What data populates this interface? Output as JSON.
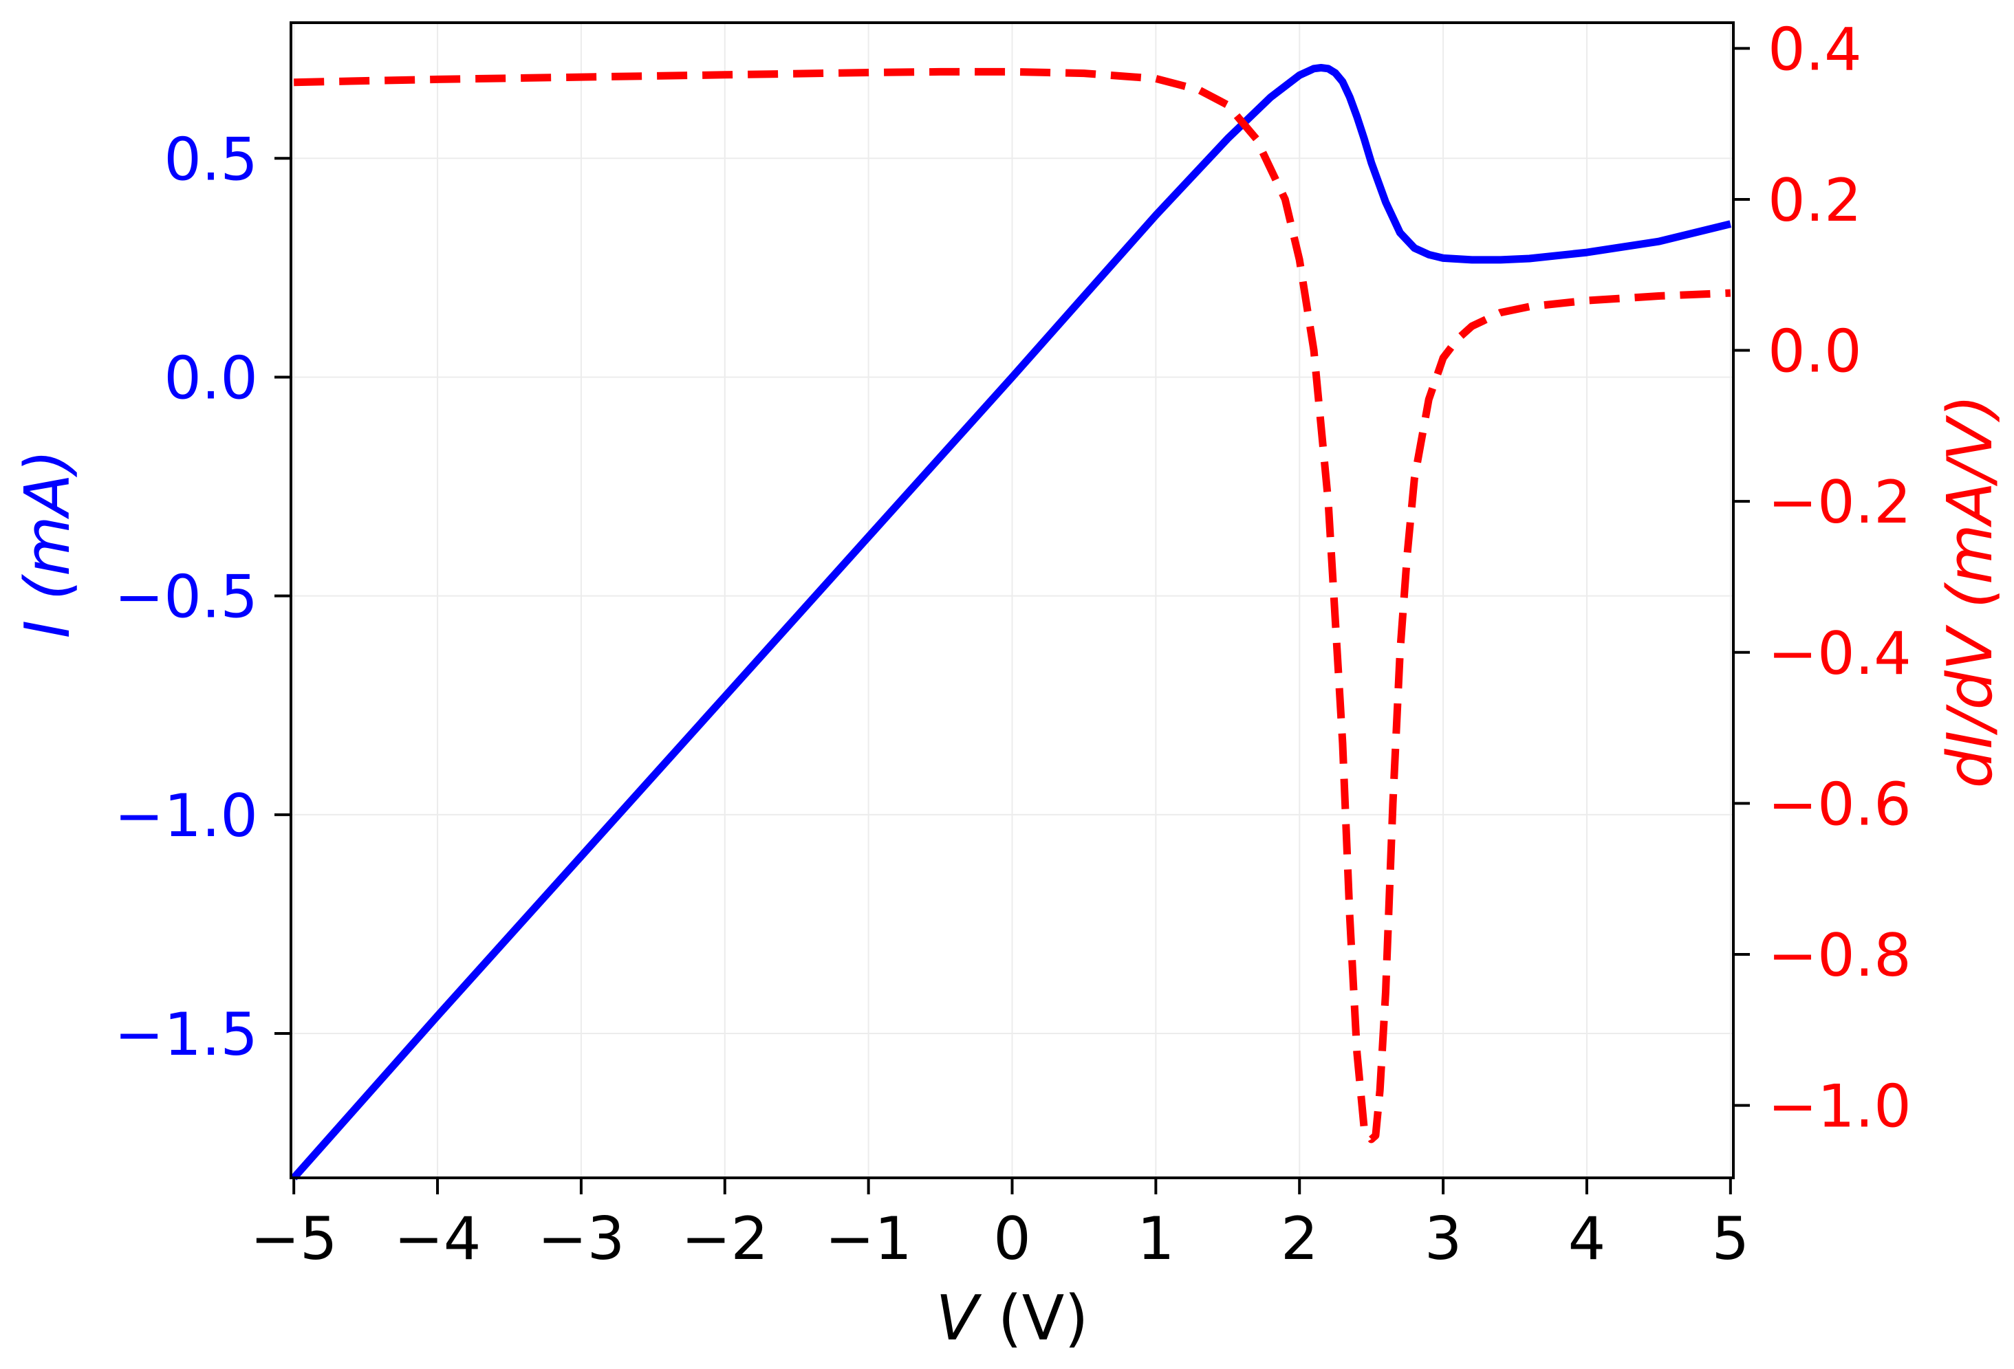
{
  "chart_data": {
    "type": "line",
    "xlabel": {
      "symbol": "V",
      "unit": " (V)"
    },
    "ylabel_left": {
      "symbol": "I",
      "unit": " (mA)"
    },
    "ylabel_right": {
      "symbol": "dI/dV",
      "unit": " (mA/V)"
    },
    "xlim": [
      -5.02,
      5.02
    ],
    "ylim_left": [
      -1.83,
      0.81
    ],
    "ylim_right": [
      -1.096,
      0.434
    ],
    "x_ticks": [
      -5,
      -4,
      -3,
      -2,
      -1,
      0,
      1,
      2,
      3,
      4,
      5
    ],
    "x_tick_labels": [
      "−5",
      "−4",
      "−3",
      "−2",
      "−1",
      "0",
      "1",
      "2",
      "3",
      "4",
      "5"
    ],
    "y_left_ticks": [
      0.5,
      0.0,
      -0.5,
      -1.0,
      -1.5
    ],
    "y_left_tick_labels": [
      "0.5",
      "0.0",
      "−0.5",
      "−1.0",
      "−1.5"
    ],
    "y_right_ticks": [
      0.4,
      0.2,
      0.0,
      -0.2,
      -0.4,
      -0.6,
      -0.8,
      -1.0
    ],
    "y_right_tick_labels": [
      "0.4",
      "0.2",
      "0.0",
      "−0.2",
      "−0.4",
      "−0.6",
      "−0.8",
      "−1.0"
    ],
    "grid": true,
    "series": [
      {
        "axis": "left",
        "style": "solid",
        "color": "#0000ff",
        "x": [
          -5.0,
          -4.0,
          -3.0,
          -2.0,
          -1.0,
          0.0,
          0.5,
          1.0,
          1.5,
          1.8,
          2.0,
          2.1,
          2.15,
          2.2,
          2.25,
          2.3,
          2.35,
          2.4,
          2.45,
          2.5,
          2.6,
          2.7,
          2.8,
          2.9,
          3.0,
          3.2,
          3.4,
          3.6,
          4.0,
          4.5,
          5.0
        ],
        "y": [
          -1.83,
          -1.46,
          -1.095,
          -0.73,
          -0.365,
          0.0,
          0.185,
          0.37,
          0.545,
          0.64,
          0.69,
          0.705,
          0.707,
          0.705,
          0.695,
          0.675,
          0.64,
          0.595,
          0.545,
          0.49,
          0.4,
          0.33,
          0.295,
          0.28,
          0.272,
          0.268,
          0.268,
          0.271,
          0.285,
          0.31,
          0.35
        ]
      },
      {
        "axis": "right",
        "style": "dashed",
        "color": "#ff0000",
        "x": [
          -5.0,
          -4.0,
          -3.0,
          -2.0,
          -1.0,
          -0.5,
          0.0,
          0.5,
          1.0,
          1.3,
          1.5,
          1.7,
          1.9,
          2.0,
          2.1,
          2.2,
          2.3,
          2.35,
          2.4,
          2.45,
          2.5,
          2.53,
          2.56,
          2.6,
          2.65,
          2.7,
          2.75,
          2.8,
          2.9,
          3.0,
          3.1,
          3.2,
          3.4,
          3.6,
          4.0,
          4.5,
          5.0
        ],
        "y": [
          0.355,
          0.359,
          0.362,
          0.365,
          0.368,
          0.369,
          0.369,
          0.367,
          0.36,
          0.345,
          0.325,
          0.28,
          0.2,
          0.12,
          0.0,
          -0.2,
          -0.52,
          -0.75,
          -0.93,
          -1.03,
          -1.045,
          -1.04,
          -0.98,
          -0.85,
          -0.6,
          -0.4,
          -0.27,
          -0.17,
          -0.065,
          -0.01,
          0.015,
          0.032,
          0.05,
          0.058,
          0.066,
          0.072,
          0.076
        ]
      }
    ]
  }
}
